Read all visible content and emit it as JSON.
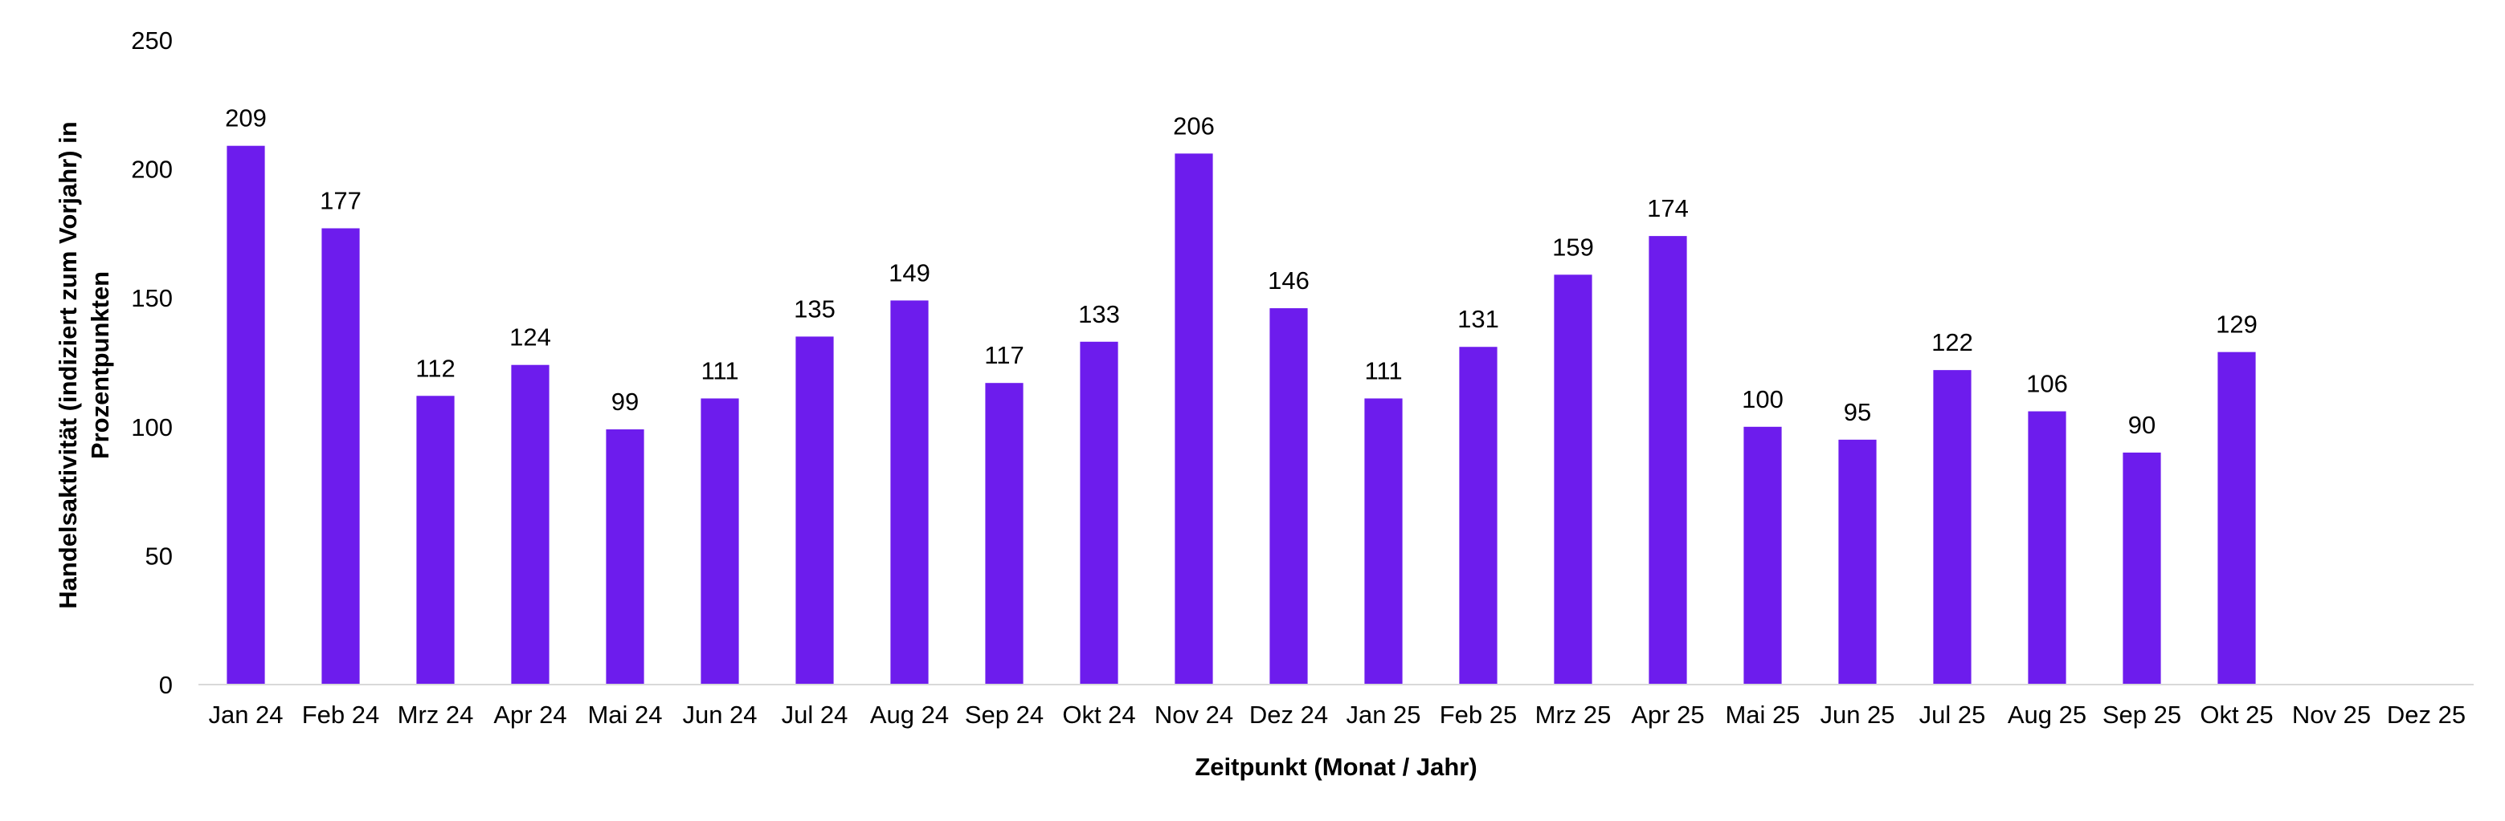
{
  "chart_data": {
    "type": "bar",
    "categories": [
      "Jan 24",
      "Feb 24",
      "Mrz 24",
      "Apr 24",
      "Mai 24",
      "Jun 24",
      "Jul 24",
      "Aug 24",
      "Sep 24",
      "Okt 24",
      "Nov 24",
      "Dez 24",
      "Jan 25",
      "Feb 25",
      "Mrz 25",
      "Apr 25",
      "Mai 25",
      "Jun 25",
      "Jul 25",
      "Aug 25",
      "Sep 25",
      "Okt 25",
      "Nov 25",
      "Dez 25"
    ],
    "values": [
      209,
      177,
      112,
      124,
      99,
      111,
      135,
      149,
      117,
      133,
      206,
      146,
      111,
      131,
      159,
      174,
      100,
      95,
      122,
      106,
      90,
      129,
      null,
      null
    ],
    "xlabel": "Zeitpunkt (Monat / Jahr)",
    "ylabel_lines": [
      "Handelsaktivität (indiziert zum Vorjahr) in",
      "Prozentpunkten"
    ],
    "ylim": [
      0,
      250
    ],
    "yticks": [
      0,
      50,
      100,
      150,
      200,
      250
    ],
    "grid": false,
    "legend": "none",
    "data_labels": true,
    "bar_color": "#6d1ced",
    "axis_color": "#d9d9d9"
  }
}
